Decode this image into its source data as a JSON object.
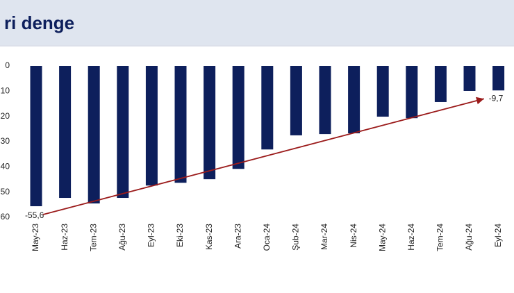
{
  "chart_data": {
    "type": "bar",
    "title": "ri denge",
    "categories": [
      "May-23",
      "Haz-23",
      "Tem-23",
      "Ağu-23",
      "Eyl-23",
      "Eki-23",
      "Kas-23",
      "Ara-23",
      "Oca-24",
      "Şub-24",
      "Mar-24",
      "Nis-24",
      "May-24",
      "Haz-24",
      "Tem-24",
      "Ağu-24",
      "Eyl-24"
    ],
    "values": [
      -55.6,
      -52.3,
      -54.5,
      -52.3,
      -47.4,
      -46.3,
      -44.9,
      -40.8,
      -33.1,
      -27.5,
      -27.0,
      -26.7,
      -20.1,
      -20.7,
      -14.3,
      -9.9,
      -9.7
    ],
    "value_labels": [
      "-55,6",
      null,
      null,
      null,
      null,
      null,
      null,
      null,
      null,
      null,
      null,
      null,
      null,
      null,
      null,
      null,
      "-9,7"
    ],
    "color": "#0d1f5c",
    "ylim": [
      -60,
      0
    ],
    "yticks": [
      {
        "value": 0,
        "label": "0"
      },
      {
        "value": -10,
        "label": "10"
      },
      {
        "value": -20,
        "label": "20"
      },
      {
        "value": -30,
        "label": "30"
      },
      {
        "value": -40,
        "label": "40"
      },
      {
        "value": -50,
        "label": "50"
      },
      {
        "value": -60,
        "label": "60"
      }
    ],
    "grid": false
  }
}
